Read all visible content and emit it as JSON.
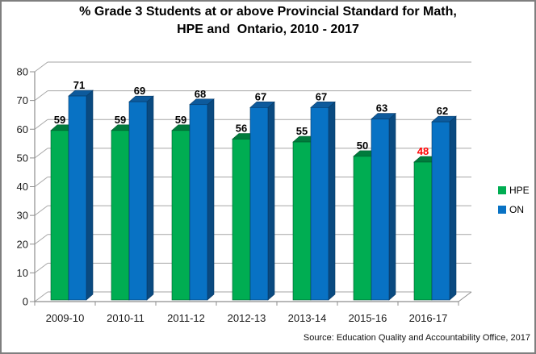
{
  "title": {
    "line1": "% Grade 3 Students at or above Provincial Standard for Math,",
    "line2": "HPE and  Ontario, 2010 - 2017"
  },
  "chart_data": {
    "type": "bar",
    "style": "3d-clustered-column",
    "title": "% Grade 3 Students at or above Provincial Standard for Math, HPE and Ontario, 2010 - 2017",
    "categories": [
      "2009-10",
      "2010-11",
      "2011-12",
      "2012-13",
      "2013-14",
      "2015-16",
      "2016-17"
    ],
    "series": [
      {
        "name": "HPE",
        "color": "#00AD52",
        "color_top": "#007B3C",
        "color_side": "#006B34",
        "outline": "#005C2C",
        "values": [
          59,
          59,
          59,
          56,
          55,
          50,
          48
        ]
      },
      {
        "name": "ON",
        "color": "#0872C4",
        "color_top": "#0D5A9C",
        "color_side": "#0A4A80",
        "outline": "#083A66",
        "values": [
          71,
          69,
          68,
          67,
          67,
          63,
          62
        ]
      }
    ],
    "ylim": [
      0,
      80
    ],
    "ytick_step": 10,
    "yticks": [
      0,
      10,
      20,
      30,
      40,
      50,
      60,
      70,
      80
    ],
    "grid": true,
    "value_labels": true,
    "label_color": "#000000",
    "highlight_label": {
      "series": "HPE",
      "category": "2016-17",
      "color": "#FF0000"
    },
    "legend_position": "right",
    "xlabel": "",
    "ylabel": ""
  },
  "legend": {
    "items": [
      {
        "label": "HPE"
      },
      {
        "label": "ON"
      }
    ]
  },
  "source": "Source: Education Quality and Accountability Office, 2017",
  "colors": {
    "gridline": "#A6A6A6",
    "axis": "#8E8E8E",
    "frame_border": "#7F7F7F",
    "text": "#1A1A1A",
    "background": "#FFFFFF"
  }
}
